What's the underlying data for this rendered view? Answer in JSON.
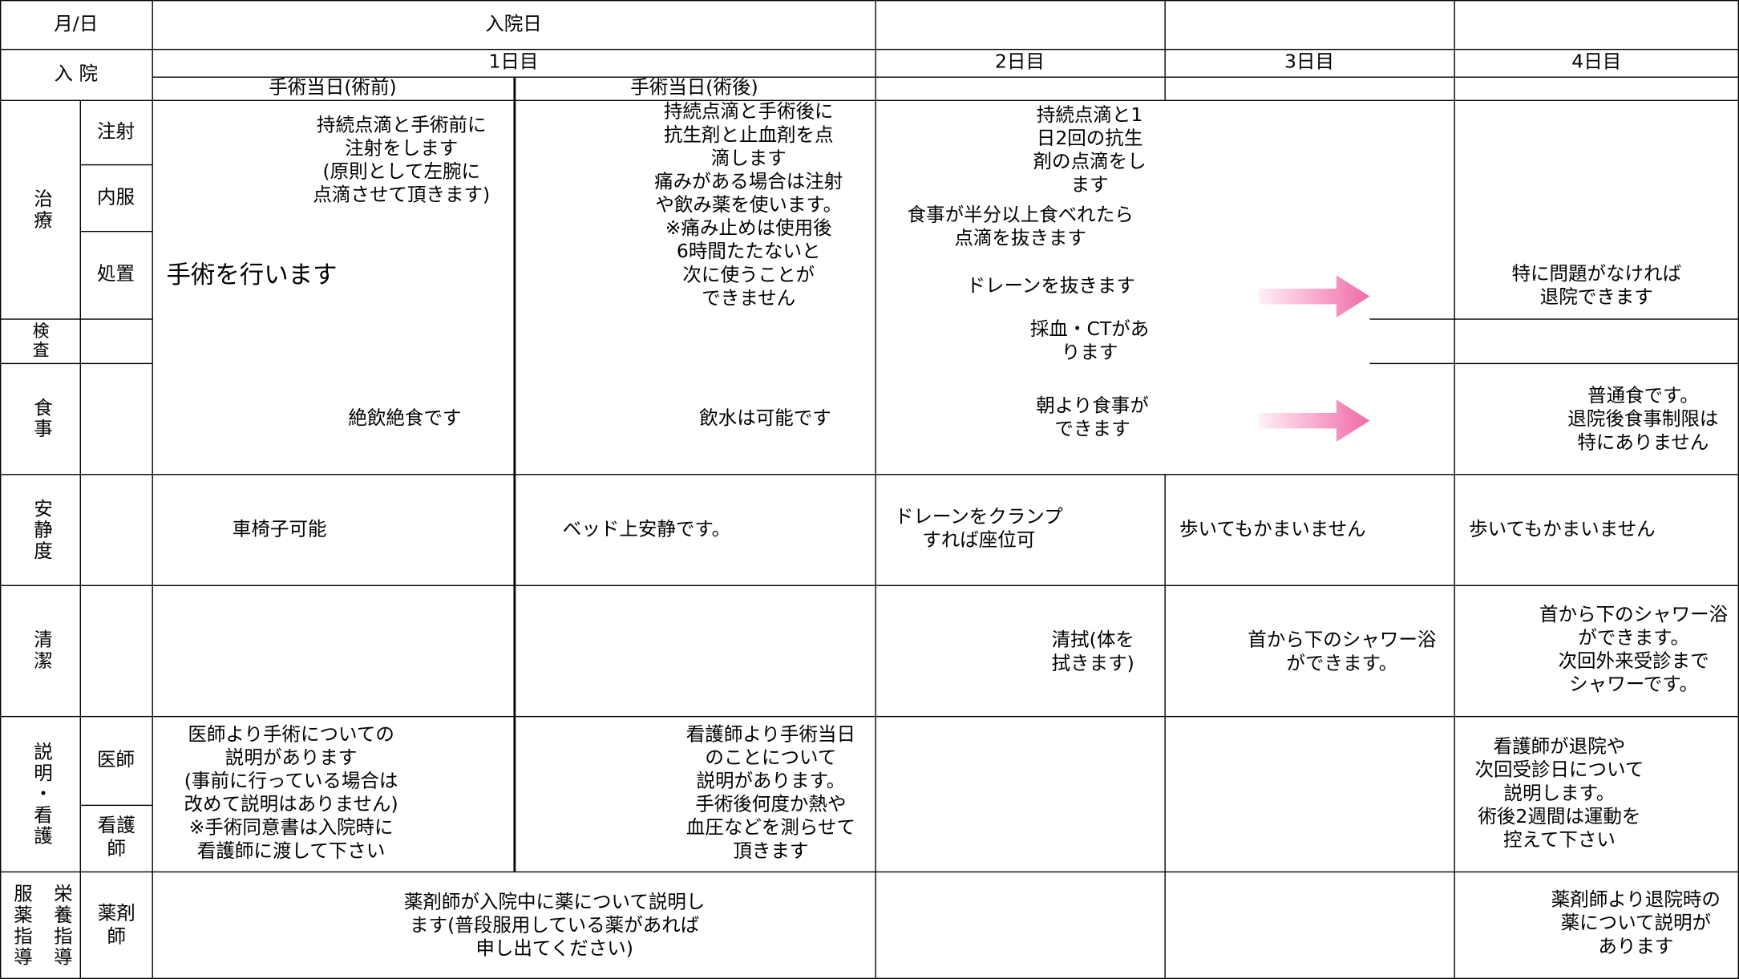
{
  "header": {
    "date_label": "月/日",
    "admission_day": "入院日",
    "admission_label": "入 院",
    "days": [
      "1日目",
      "2日目",
      "3日目",
      "4日目"
    ],
    "op_before": "手術当日(術前)",
    "op_after": "手術当日(術後)"
  },
  "rows": {
    "treatment": {
      "label": "治療",
      "sub": [
        "注射",
        "内服",
        "処置"
      ]
    },
    "exam": {
      "label": "検査"
    },
    "meal": {
      "label": "食事"
    },
    "rest": {
      "label": "安静度"
    },
    "hygiene": {
      "label": "清潔"
    },
    "explain": {
      "label": "説明・看護",
      "sub": [
        "医師",
        "看護師"
      ]
    },
    "guidance": {
      "label": [
        "栄養指導",
        "服薬指導"
      ],
      "sub": [
        "薬剤師"
      ]
    }
  },
  "cells": [
    {
      "lines": [
        "持続点滴と手術前に",
        "注射をします",
        "(原則として左腕に",
        "点滴させて頂きます)"
      ]
    },
    {
      "lines": [
        "手術を行います"
      ]
    },
    {
      "lines": [
        "持続点滴と手術後に",
        "抗生剤と止血剤を点",
        "滴します",
        "痛みがある場合は注射",
        "や飲み薬を使います。",
        "※痛み止めは使用後",
        "6時間たたないと",
        "次に使うことが",
        "できません"
      ]
    },
    {
      "lines": [
        "持続点滴と1",
        "日2回の抗生",
        "剤の点滴をし",
        "ます"
      ]
    },
    {
      "lines": [
        "食事が半分以上食べれたら",
        "点滴を抜きます"
      ]
    },
    {
      "lines": [
        "ドレーンを抜きます"
      ]
    },
    {
      "lines": [
        "採血・CTがあ",
        "ります"
      ]
    },
    {
      "lines": [
        "特に問題がなければ",
        "退院できます"
      ]
    },
    {
      "lines": [
        "絶飲絶食です"
      ]
    },
    {
      "lines": [
        "飲水は可能です"
      ]
    },
    {
      "lines": [
        "朝より食事が",
        "できます"
      ]
    },
    {
      "lines": [
        "普通食です。",
        "退院後食事制限は",
        "特にありません"
      ]
    },
    {
      "lines": [
        "車椅子可能"
      ]
    },
    {
      "lines": [
        "ベッド上安静です。"
      ]
    },
    {
      "lines": [
        "ドレーンをクランプ",
        "すれば座位可"
      ]
    },
    {
      "lines": [
        "歩いてもかまいません"
      ]
    },
    {
      "lines": [
        "歩いてもかまいません"
      ]
    },
    {
      "lines": [
        "清拭(体を",
        "拭きます)"
      ]
    },
    {
      "lines": [
        "首から下のシャワー浴",
        "ができます。"
      ]
    },
    {
      "lines": [
        "首から下のシャワー浴",
        "ができます。",
        "次回外来受診まで",
        "シャワーです。"
      ]
    },
    {
      "lines": [
        "医師より手術についての",
        "説明があります",
        "(事前に行っている場合は",
        "改めて説明はありません)",
        "※手術同意書は入院時に",
        "看護師に渡して下さい"
      ]
    },
    {
      "lines": [
        "看護師より手術当日",
        "のことについて",
        "説明があります。",
        "手術後何度か熱や",
        "血圧などを測らせて",
        "頂きます"
      ]
    },
    {
      "lines": [
        "看護師が退院や",
        "次回受診日について",
        "説明します。",
        "術後2週間は運動を",
        "控えて下さい"
      ]
    },
    {
      "lines": [
        "薬剤師が入院中に薬について説明し",
        "ます(普段服用している薬があれば",
        "申し出てください)"
      ]
    },
    {
      "lines": [
        "薬剤師より退院時の",
        "薬について説明が",
        "あります"
      ]
    }
  ]
}
